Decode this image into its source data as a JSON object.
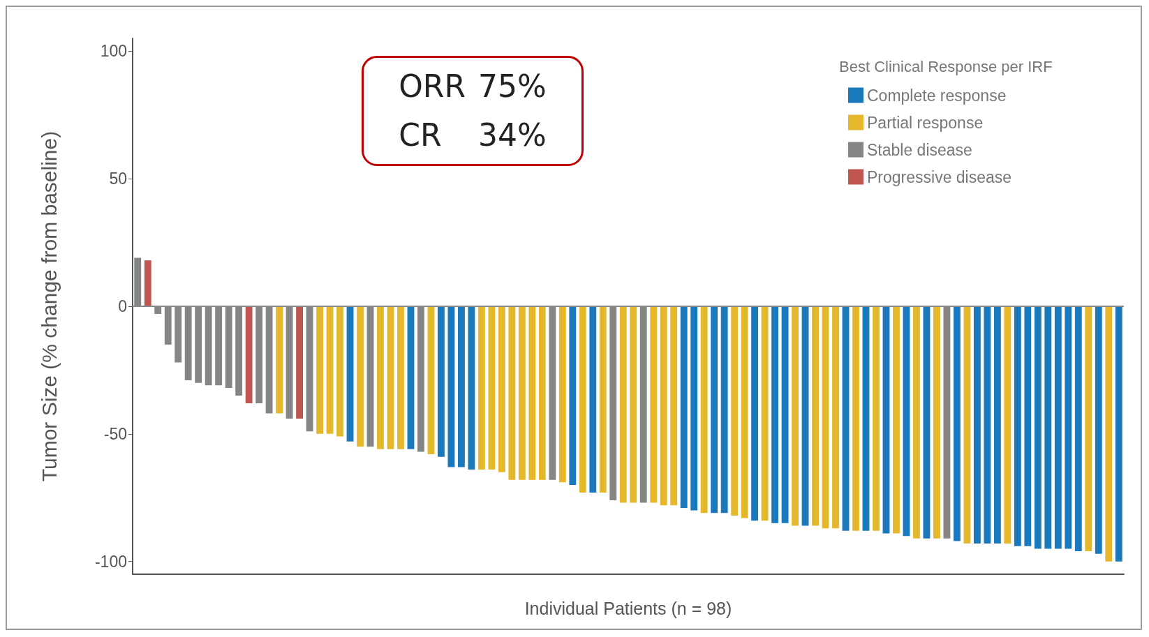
{
  "chart_data": {
    "type": "bar",
    "xlabel": "Individual Patients (n = 98)",
    "ylabel": "Tumor Size (% change from baseline)",
    "legend_title": "Best Clinical Response per IRF",
    "legend": "top right",
    "grid": false,
    "tick_labels": "y",
    "ylim": [
      -105,
      105
    ],
    "yticks": [
      -100,
      -50,
      0,
      50,
      100
    ],
    "annotations": [
      "ORR 75%",
      "CR 34%"
    ],
    "ref_lines": [
      {
        "axis": "y",
        "value": 0,
        "color": "#888888"
      }
    ],
    "categories": [
      null,
      null,
      null,
      null,
      null,
      null,
      null,
      null,
      null,
      null,
      null,
      null,
      null,
      null,
      null,
      null,
      null,
      null,
      null,
      null,
      null,
      null,
      null,
      null,
      null,
      null,
      null,
      null,
      null,
      null,
      null,
      null,
      null,
      null,
      null,
      null,
      null,
      null,
      null,
      null,
      null,
      null,
      null,
      null,
      null,
      null,
      null,
      null,
      null,
      null,
      null,
      null,
      null,
      null,
      null,
      null,
      null,
      null,
      null,
      null,
      null,
      null,
      null,
      null,
      null,
      null,
      null,
      null,
      null,
      null,
      null,
      null,
      null,
      null,
      null,
      null,
      null,
      null,
      null,
      null,
      null,
      null,
      null,
      null,
      null,
      null,
      null,
      null,
      null,
      null,
      null,
      null,
      null,
      null,
      null,
      null,
      null,
      null
    ],
    "series": [
      {
        "name": "Complete response",
        "color": "#1a78bd",
        "values": [
          null,
          null,
          null,
          null,
          null,
          null,
          null,
          null,
          null,
          null,
          null,
          null,
          null,
          null,
          null,
          null,
          null,
          null,
          null,
          null,
          null,
          -53,
          null,
          null,
          null,
          null,
          null,
          -56,
          null,
          null,
          -59,
          -63,
          -63,
          -64,
          null,
          null,
          null,
          null,
          null,
          null,
          null,
          null,
          null,
          -70,
          null,
          -73,
          null,
          null,
          null,
          null,
          null,
          null,
          null,
          null,
          -79,
          -80,
          null,
          -81,
          -81,
          null,
          null,
          -84,
          null,
          -85,
          -85,
          null,
          -86,
          null,
          null,
          null,
          -88,
          null,
          -88,
          null,
          -89,
          null,
          -90,
          null,
          -91,
          null,
          null,
          -92,
          null,
          -93,
          -93,
          -93,
          null,
          -94,
          -94,
          -95,
          -95,
          -95,
          -95,
          -96,
          null,
          -97,
          null,
          -100
        ]
      },
      {
        "name": "Partial response",
        "color": "#e5b82c",
        "values": [
          null,
          null,
          null,
          null,
          null,
          null,
          null,
          null,
          null,
          null,
          null,
          null,
          null,
          null,
          -42,
          null,
          null,
          null,
          -50,
          -50,
          -51,
          null,
          -55,
          null,
          -56,
          -56,
          -56,
          null,
          null,
          -58,
          null,
          null,
          null,
          null,
          -64,
          -64,
          -65,
          -68,
          -68,
          -68,
          -68,
          null,
          -69,
          null,
          -73,
          null,
          -73,
          null,
          -77,
          -77,
          null,
          -77,
          -78,
          -78,
          null,
          null,
          -81,
          null,
          null,
          -82,
          -83,
          null,
          -84,
          null,
          null,
          -86,
          null,
          -86,
          -87,
          -87,
          null,
          -88,
          null,
          -88,
          null,
          -89,
          null,
          -91,
          null,
          -91,
          null,
          null,
          -93,
          null,
          null,
          null,
          -93,
          null,
          null,
          null,
          null,
          null,
          null,
          null,
          -96,
          null,
          -100,
          null
        ]
      },
      {
        "name": "Stable disease",
        "color": "#858585",
        "values": [
          19,
          null,
          -3,
          -15,
          -22,
          -29,
          -30,
          -31,
          -31,
          -32,
          -35,
          null,
          -38,
          -42,
          null,
          -44,
          null,
          -49,
          null,
          null,
          null,
          null,
          null,
          -55,
          null,
          null,
          null,
          null,
          -57,
          null,
          null,
          null,
          null,
          null,
          null,
          null,
          null,
          null,
          null,
          null,
          null,
          -68,
          null,
          null,
          null,
          null,
          null,
          -76,
          null,
          null,
          -77,
          null,
          null,
          null,
          null,
          null,
          null,
          null,
          null,
          null,
          null,
          null,
          null,
          null,
          null,
          null,
          null,
          null,
          null,
          null,
          null,
          null,
          null,
          null,
          null,
          null,
          null,
          null,
          null,
          null,
          -91,
          null,
          null,
          null,
          null,
          null,
          null,
          null,
          null,
          null,
          null,
          null,
          null,
          null,
          null,
          null,
          null,
          null
        ]
      },
      {
        "name": "Progressive disease",
        "color": "#c0554f",
        "values": [
          null,
          18,
          null,
          null,
          null,
          null,
          null,
          null,
          null,
          null,
          null,
          -38,
          null,
          null,
          null,
          null,
          -44,
          null,
          null,
          null,
          null,
          null,
          null,
          null,
          null,
          null,
          null,
          null,
          null,
          null,
          null,
          null,
          null,
          null,
          null,
          null,
          null,
          null,
          null,
          null,
          null,
          null,
          null,
          null,
          null,
          null,
          null,
          null,
          null,
          null,
          null,
          null,
          null,
          null,
          null,
          null,
          null,
          null,
          null,
          null,
          null,
          null,
          null,
          null,
          null,
          null,
          null,
          null,
          null,
          null,
          null,
          null,
          null,
          null,
          null,
          null,
          null,
          null,
          null,
          null,
          null,
          null,
          null,
          null,
          null,
          null,
          null,
          null,
          null,
          null,
          null,
          null,
          null,
          null,
          null,
          null,
          null,
          null
        ]
      }
    ]
  }
}
